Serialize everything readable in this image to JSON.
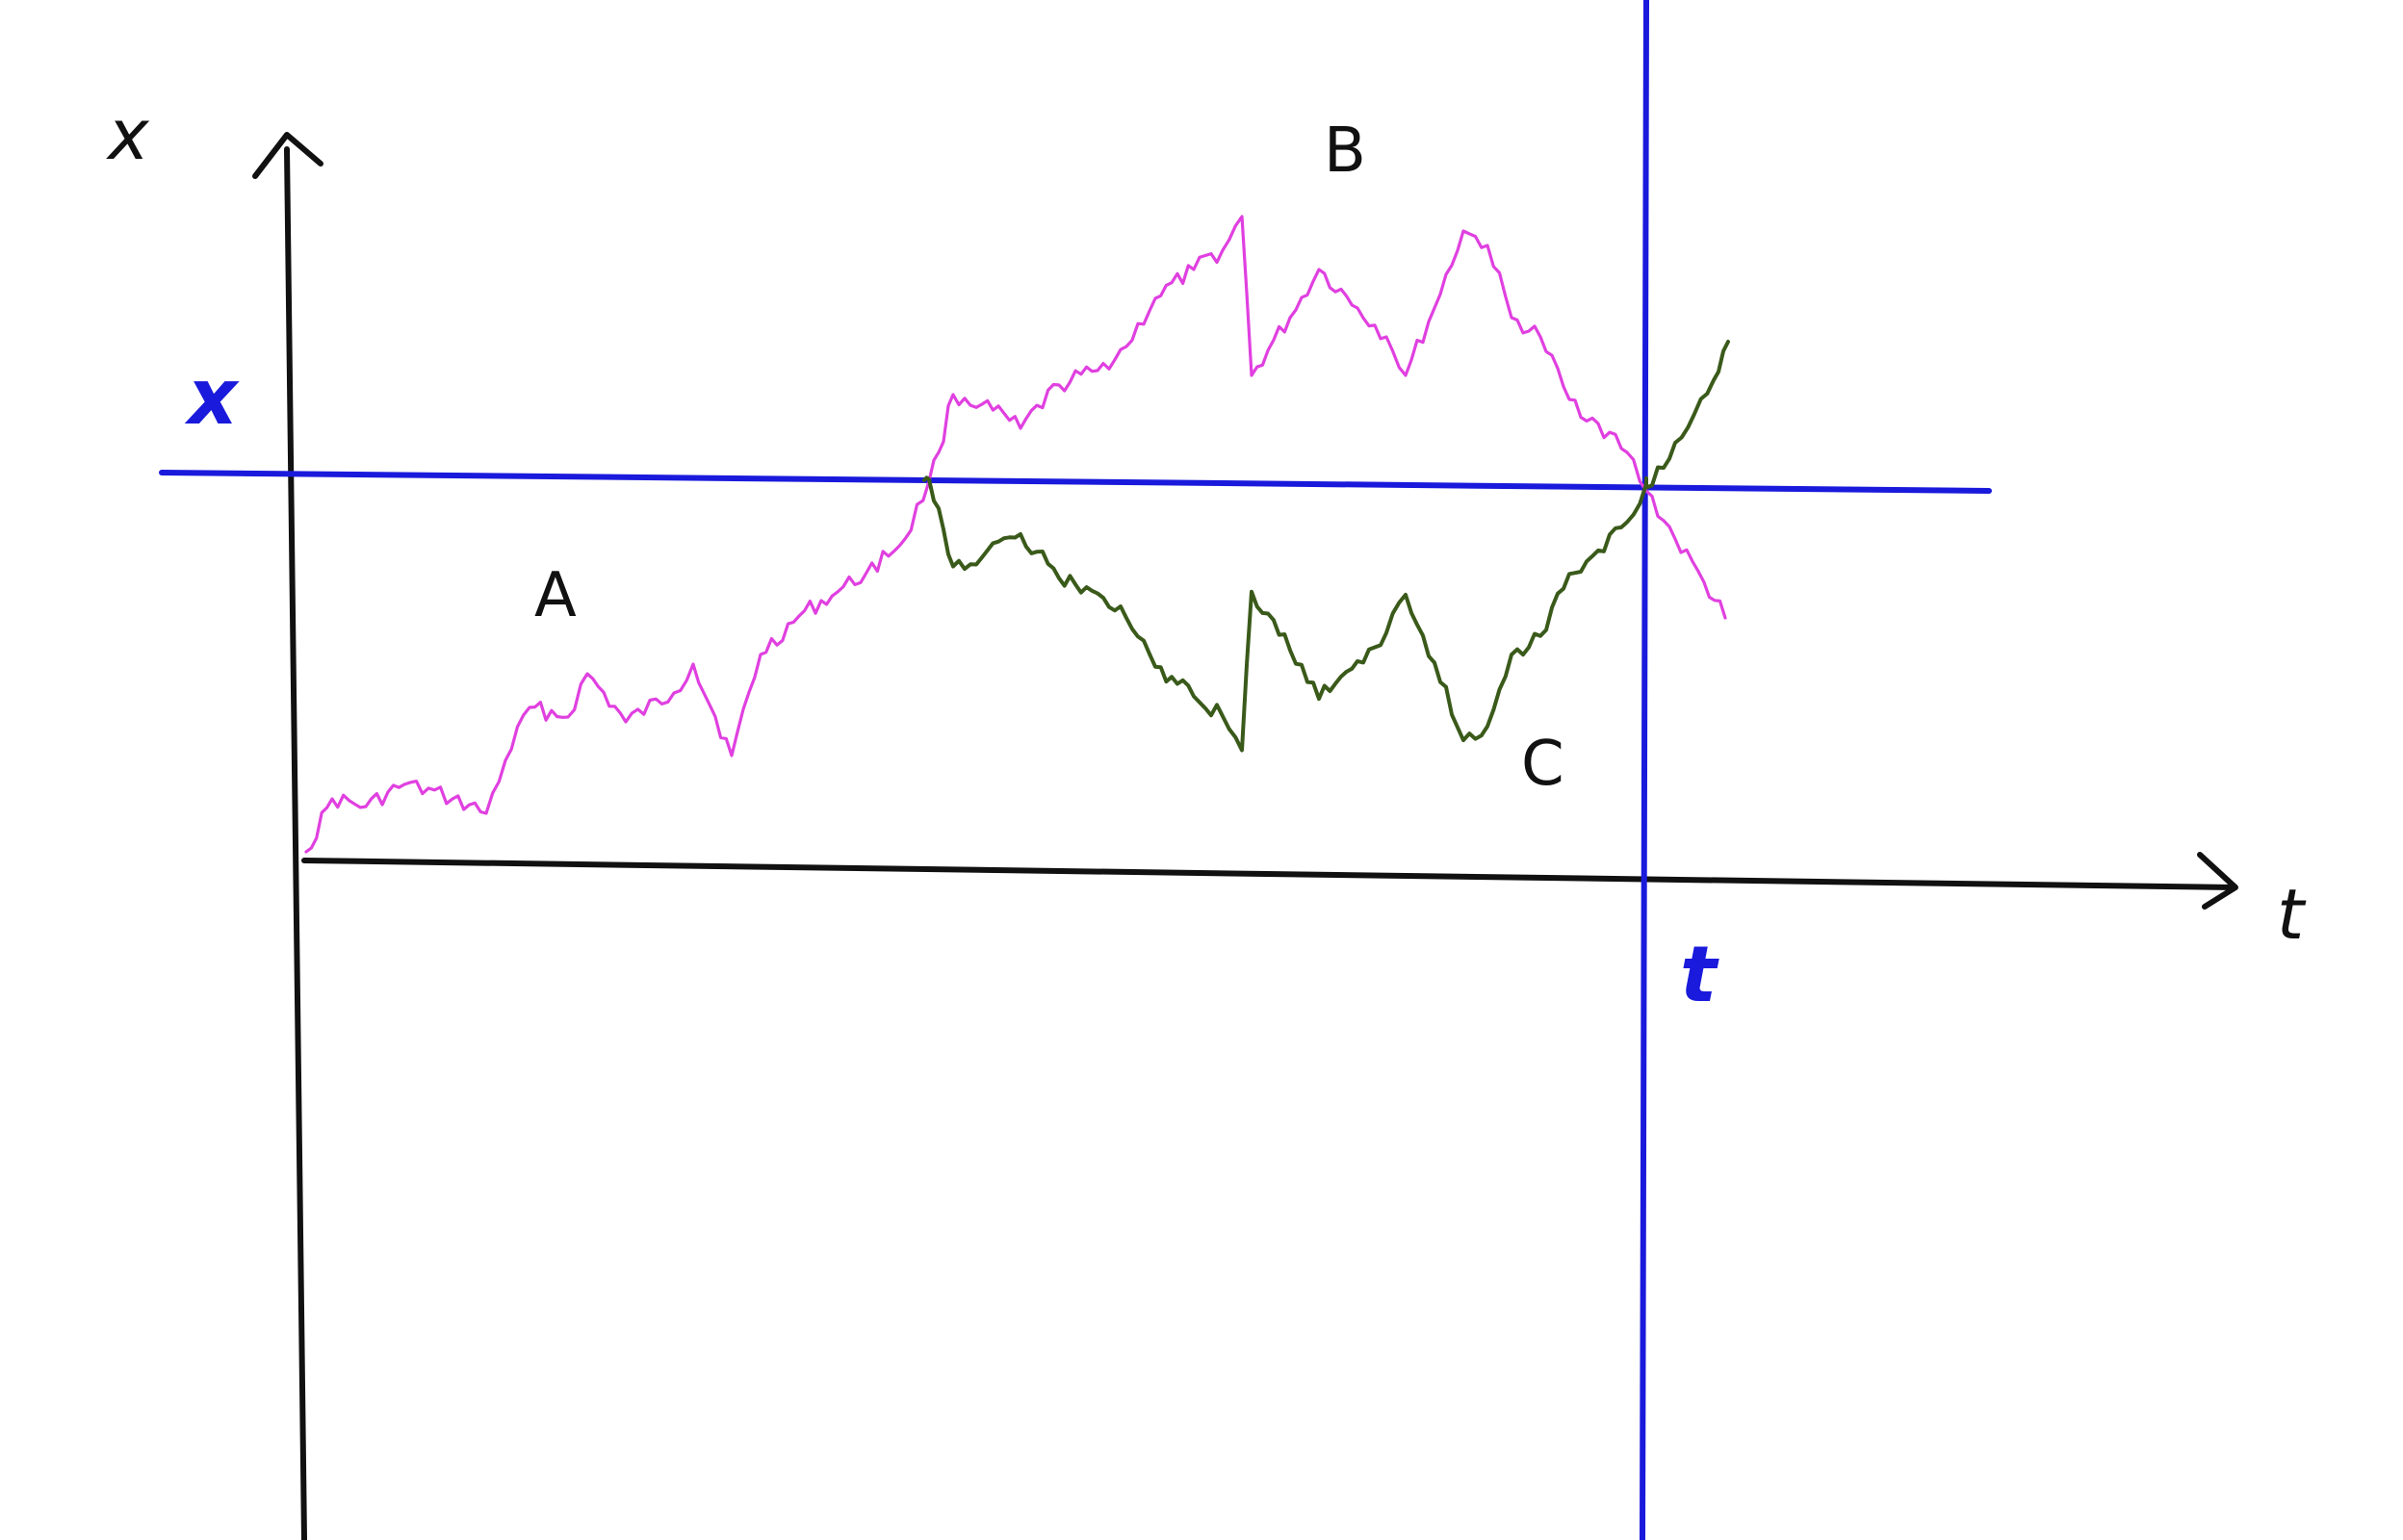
{
  "diagram": {
    "axes": {
      "vertical_label": "x",
      "horizontal_label": "t"
    },
    "level_marker": {
      "label": "x",
      "color": "#1a1adc"
    },
    "time_marker": {
      "label": "t",
      "color": "#1a1adc"
    },
    "regions": {
      "a": "A",
      "b": "B",
      "c": "C"
    },
    "paths": {
      "original_color": "#e040e0",
      "reflected_color": "#3a5a1a"
    },
    "axis_color": "#111111"
  }
}
